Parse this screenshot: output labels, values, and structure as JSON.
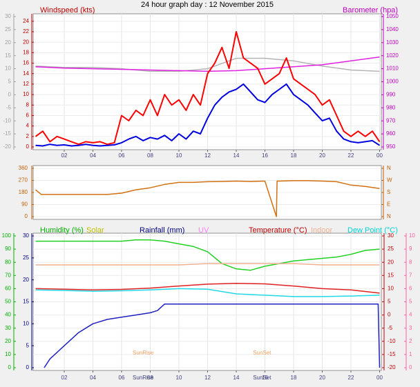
{
  "chart_data": [
    {
      "type": "line",
      "title": "24 hour graph day : 12 November 2015",
      "ylabel": "Windspeed (kts)",
      "y2label": "Barometer (hpa)",
      "xlim": [
        0,
        24
      ],
      "xticks": [
        {
          "value": 2,
          "label": "02"
        },
        {
          "value": 4,
          "label": "04"
        },
        {
          "value": 6,
          "label": "06"
        },
        {
          "value": 8,
          "label": "08"
        },
        10,
        12,
        14,
        16,
        18,
        20,
        22,
        {
          "value": 24,
          "label": "00"
        }
      ],
      "ylim": [
        0,
        24.9
      ],
      "yticks": [
        0,
        2,
        4,
        6,
        8,
        10,
        12,
        14,
        16,
        18,
        20,
        22,
        24
      ],
      "y2lim": [
        950,
        1050
      ],
      "y2ticks": [
        950,
        960,
        970,
        980,
        990,
        1000,
        1010,
        1020,
        1030,
        1040,
        1050
      ],
      "y3lim": [
        -20,
        30
      ],
      "y3ticks": [
        -20,
        -15,
        -10,
        -5,
        0,
        5,
        10,
        15,
        20,
        25,
        30
      ],
      "series": [
        {
          "color": "#b4b4b4",
          "axis": "y3",
          "x": [
            0,
            2,
            4,
            6,
            8,
            10,
            12,
            14,
            16,
            18,
            20,
            22,
            24
          ],
          "values": [
            11,
            10.5,
            10.5,
            10,
            9,
            9,
            10,
            14,
            14,
            13,
            11,
            9.5,
            9
          ]
        },
        {
          "color": "#e020e0",
          "axis": "y2",
          "x": [
            0,
            2,
            4,
            6,
            8,
            10,
            12,
            14,
            16,
            18,
            20,
            22,
            24
          ],
          "values": [
            1011.5,
            1010.5,
            1010,
            1009.5,
            1009,
            1008.5,
            1008,
            1008.5,
            1010,
            1011.5,
            1013,
            1016,
            1019
          ]
        },
        {
          "color": "#ff0000",
          "axis": "y",
          "x": [
            0,
            0.5,
            1,
            1.5,
            2,
            2.5,
            3,
            3.5,
            4,
            4.5,
            5,
            5.5,
            6,
            6.5,
            7,
            7.5,
            8,
            8.5,
            9,
            9.5,
            10,
            10.5,
            11,
            11.5,
            12,
            12.5,
            13,
            13.5,
            14,
            14.5,
            15,
            15.5,
            16,
            16.5,
            17,
            17.5,
            18,
            18.5,
            19,
            19.5,
            20,
            20.5,
            21,
            21.5,
            22,
            22.5,
            23,
            23.5,
            24
          ],
          "values": [
            2,
            3,
            1,
            2,
            1.5,
            1,
            0.5,
            1,
            0.8,
            1,
            0.5,
            0.8,
            6,
            5,
            7,
            6,
            9,
            6,
            10,
            8,
            9,
            7,
            10,
            8,
            14,
            16,
            19,
            15,
            22,
            17,
            16,
            15,
            12,
            13,
            14,
            17,
            13,
            12,
            11,
            10,
            8,
            9,
            6,
            3,
            2,
            3,
            2,
            3,
            1
          ]
        },
        {
          "color": "#0000e0",
          "axis": "y",
          "x": [
            0,
            0.5,
            1,
            1.5,
            2,
            2.5,
            3,
            3.5,
            4,
            4.5,
            5,
            5.5,
            6,
            6.5,
            7,
            7.5,
            8,
            8.5,
            9,
            9.5,
            10,
            10.5,
            11,
            11.5,
            12,
            12.5,
            13,
            13.5,
            14,
            14.5,
            15,
            15.5,
            16,
            16.5,
            17,
            17.5,
            18,
            18.5,
            19,
            19.5,
            20,
            20.5,
            21,
            21.5,
            22,
            22.5,
            23,
            23.5,
            24
          ],
          "values": [
            0.3,
            0.2,
            0.5,
            0.3,
            0.4,
            0.2,
            0.3,
            0.5,
            0.3,
            0.2,
            0.3,
            0.4,
            0.8,
            1.5,
            2,
            1.2,
            1.8,
            1.5,
            2.2,
            1.2,
            2.5,
            1.5,
            3,
            2.5,
            5.5,
            8,
            9.5,
            10.5,
            11,
            12,
            10.5,
            9,
            8.5,
            10,
            11,
            12,
            10,
            9,
            8,
            6.5,
            5,
            5.5,
            3,
            1.5,
            1,
            0.8,
            1,
            1.2,
            0.3
          ]
        }
      ]
    },
    {
      "type": "line",
      "xlim": [
        0,
        24
      ],
      "ylim": [
        0,
        360
      ],
      "yticks": [
        0,
        90,
        180,
        270,
        360
      ],
      "y2lim": [
        0,
        360
      ],
      "y2ticks": [
        {
          "value": 0,
          "label": "N"
        },
        {
          "value": 90,
          "label": "E"
        },
        {
          "value": 180,
          "label": "S"
        },
        {
          "value": 270,
          "label": "W"
        },
        {
          "value": 360,
          "label": "N"
        }
      ],
      "series": [
        {
          "color": "#d07010",
          "axis": "y",
          "x": [
            0,
            0.4,
            1,
            2,
            3,
            4,
            5,
            6,
            7,
            8,
            9,
            10,
            11,
            12,
            13,
            14,
            15,
            16,
            16.8,
            16.85,
            17,
            18,
            19,
            20,
            21,
            22,
            23,
            24
          ],
          "values": [
            200,
            165,
            165,
            165,
            165,
            165,
            165,
            175,
            200,
            215,
            240,
            255,
            255,
            260,
            262,
            265,
            262,
            265,
            0,
            265,
            265,
            268,
            268,
            265,
            260,
            235,
            225,
            210
          ]
        }
      ]
    },
    {
      "type": "line",
      "legend": [
        "Humidity (%)",
        "Solar",
        "Rainfall (mm)",
        "UV",
        "Temperature (°C)",
        "Indoor",
        "Dew Point (°C)"
      ],
      "legend_colors": [
        "#00b000",
        "#c0c000",
        "#000080",
        "#ff80ff",
        "#c00000",
        "#f0b090",
        "#00d8d8"
      ],
      "xlim": [
        0,
        24
      ],
      "xticks": [
        {
          "value": 2,
          "label": "02"
        },
        {
          "value": 4,
          "label": "04"
        },
        {
          "value": 6,
          "label": "06"
        },
        {
          "value": 8,
          "label": "08"
        },
        10,
        12,
        14,
        16,
        18,
        20,
        22,
        {
          "value": 24,
          "label": "00"
        }
      ],
      "ylim": [
        0,
        100
      ],
      "yticks": [
        0,
        10,
        20,
        30,
        40,
        50,
        60,
        70,
        80,
        90,
        100
      ],
      "y3lim": [
        0,
        30
      ],
      "y3ticks": [
        0,
        5,
        10,
        15,
        20,
        25,
        30
      ],
      "y2lim": [
        -20,
        30
      ],
      "y2ticks": [
        -20,
        -15,
        -10,
        -5,
        0,
        5,
        10,
        15,
        20,
        25,
        30
      ],
      "y4lim": [
        0,
        10
      ],
      "y4ticks": [
        0,
        1,
        2,
        3,
        4,
        5,
        6,
        7,
        8,
        9,
        10
      ],
      "annotations": [
        {
          "text": "SunRise",
          "x": 7.5
        },
        {
          "text": "SunSet",
          "x": 15.8
        }
      ],
      "series": [
        {
          "color": "#20d020",
          "axis": "y",
          "x": [
            0,
            1,
            2,
            3,
            4,
            5,
            6,
            7,
            8,
            9,
            10,
            11,
            12,
            13,
            14,
            15,
            16,
            17,
            18,
            19,
            20,
            21,
            22,
            23,
            24
          ],
          "values": [
            96,
            96,
            96,
            96,
            96,
            96,
            96,
            97,
            97,
            96,
            94,
            92,
            88,
            79,
            75,
            74,
            77,
            79,
            81,
            82,
            83,
            84,
            86,
            89,
            90
          ]
        },
        {
          "color": "#f0b090",
          "axis": "y2",
          "x": [
            0,
            2,
            4,
            6,
            8,
            10,
            12,
            14,
            16,
            18,
            20,
            22,
            24
          ],
          "values": [
            19,
            19,
            19,
            19,
            19,
            19,
            19.5,
            19.5,
            19.5,
            19.5,
            19,
            19,
            19
          ]
        },
        {
          "color": "#e02020",
          "axis": "y2",
          "x": [
            0,
            2,
            4,
            6,
            8,
            10,
            12,
            14,
            16,
            18,
            20,
            22,
            24
          ],
          "values": [
            10,
            9.8,
            9.5,
            9.7,
            10.2,
            11,
            11.7,
            12,
            11.8,
            11,
            10,
            9.5,
            8.3
          ]
        },
        {
          "color": "#20d8e8",
          "axis": "y2",
          "x": [
            0,
            2,
            4,
            6,
            8,
            10,
            12,
            14,
            16,
            18,
            20,
            22,
            24
          ],
          "values": [
            9.5,
            9.3,
            9,
            9.2,
            9.5,
            10,
            9.8,
            8,
            7.5,
            7,
            7,
            7.2,
            7.5
          ]
        },
        {
          "color": "#2020c0",
          "axis": "y3",
          "x": [
            0.6,
            1,
            2,
            3,
            4,
            5,
            6,
            7,
            8,
            8.5,
            9,
            23.9,
            24
          ],
          "values": [
            0,
            2,
            5,
            8,
            10,
            11,
            11.5,
            12,
            12.5,
            13,
            14.5,
            14.5,
            0
          ]
        }
      ]
    }
  ]
}
